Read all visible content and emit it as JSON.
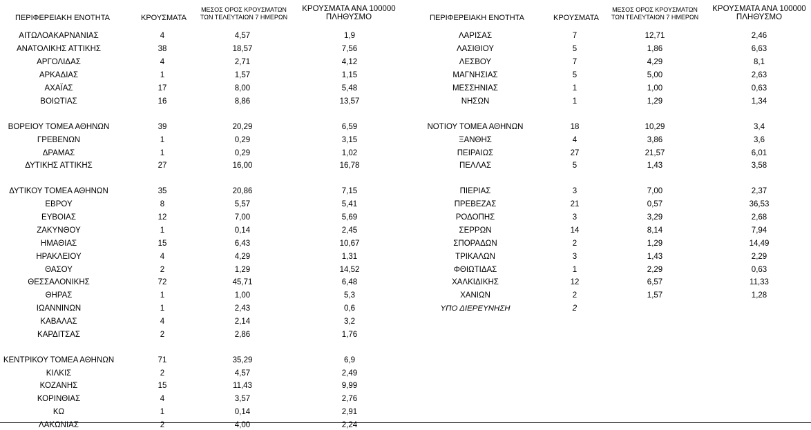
{
  "headers": {
    "region": "ΠΕΡΙΦΕΡΕΙΑΚΗ ΕΝΟΤΗΤΑ",
    "cases": "ΚΡΟΥΣΜΑΤΑ",
    "avg_line1": "ΜΕΣΟΣ ΟΡΟΣ ΚΡΟΥΣΜΑΤΩΝ",
    "avg_line2": "ΤΩΝ ΤΕΛΕΥΤΑΙΩΝ 7 ΗΜΕΡΩΝ",
    "per100k_line1": "ΚΡΟΥΣΜΑΤΑ ΑΝΑ 100000",
    "per100k_line2": "ΠΛΗΘΥΣΜΟ"
  },
  "left_rows": [
    {
      "name": "ΑΙΤΩΛΟΑΚΑΡΝΑΝΙΑΣ",
      "cases": "4",
      "avg": "4,57",
      "per100k": "1,9"
    },
    {
      "name": "ΑΝΑΤΟΛΙΚΗΣ ΑΤΤΙΚΗΣ",
      "cases": "38",
      "avg": "18,57",
      "per100k": "7,56"
    },
    {
      "name": "ΑΡΓΟΛΙΔΑΣ",
      "cases": "4",
      "avg": "2,71",
      "per100k": "4,12"
    },
    {
      "name": "ΑΡΚΑΔΙΑΣ",
      "cases": "1",
      "avg": "1,57",
      "per100k": "1,15"
    },
    {
      "name": "ΑΧΑΪΑΣ",
      "cases": "17",
      "avg": "8,00",
      "per100k": "5,48"
    },
    {
      "name": "ΒΟΙΩΤΙΑΣ",
      "cases": "16",
      "avg": "8,86",
      "per100k": "13,57"
    },
    {
      "name": "ΒΟΡΕΙΟΥ ΤΟΜΕΑ ΑΘΗΝΩΝ",
      "cases": "39",
      "avg": "20,29",
      "per100k": "6,59"
    },
    {
      "name": "ΓΡΕΒΕΝΩΝ",
      "cases": "1",
      "avg": "0,29",
      "per100k": "3,15"
    },
    {
      "name": "ΔΡΑΜΑΣ",
      "cases": "1",
      "avg": "0,29",
      "per100k": "1,02"
    },
    {
      "name": "ΔΥΤΙΚΗΣ ΑΤΤΙΚΗΣ",
      "cases": "27",
      "avg": "16,00",
      "per100k": "16,78"
    },
    {
      "name": "ΔΥΤΙΚΟΥ ΤΟΜΕΑ ΑΘΗΝΩΝ",
      "cases": "35",
      "avg": "20,86",
      "per100k": "7,15"
    },
    {
      "name": "ΕΒΡΟΥ",
      "cases": "8",
      "avg": "5,57",
      "per100k": "5,41"
    },
    {
      "name": "ΕΥΒΟΙΑΣ",
      "cases": "12",
      "avg": "7,00",
      "per100k": "5,69"
    },
    {
      "name": "ΖΑΚΥΝΘΟΥ",
      "cases": "1",
      "avg": "0,14",
      "per100k": "2,45"
    },
    {
      "name": "ΗΜΑΘΙΑΣ",
      "cases": "15",
      "avg": "6,43",
      "per100k": "10,67"
    },
    {
      "name": "ΗΡΑΚΛΕΙΟΥ",
      "cases": "4",
      "avg": "4,29",
      "per100k": "1,31"
    },
    {
      "name": "ΘΑΣΟΥ",
      "cases": "2",
      "avg": "1,29",
      "per100k": "14,52"
    },
    {
      "name": "ΘΕΣΣΑΛΟΝΙΚΗΣ",
      "cases": "72",
      "avg": "45,71",
      "per100k": "6,48"
    },
    {
      "name": "ΘΗΡΑΣ",
      "cases": "1",
      "avg": "1,00",
      "per100k": "5,3"
    },
    {
      "name": "ΙΩΑΝΝΙΝΩΝ",
      "cases": "1",
      "avg": "2,43",
      "per100k": "0,6"
    },
    {
      "name": "ΚΑΒΑΛΑΣ",
      "cases": "4",
      "avg": "2,14",
      "per100k": "3,2"
    },
    {
      "name": "ΚΑΡΔΙΤΣΑΣ",
      "cases": "2",
      "avg": "2,86",
      "per100k": "1,76"
    },
    {
      "name": "ΚΕΝΤΡΙΚΟΥ ΤΟΜΕΑ ΑΘΗΝΩΝ",
      "cases": "71",
      "avg": "35,29",
      "per100k": "6,9"
    },
    {
      "name": "ΚΙΛΚΙΣ",
      "cases": "2",
      "avg": "4,57",
      "per100k": "2,49"
    },
    {
      "name": "ΚΟΖΑΝΗΣ",
      "cases": "15",
      "avg": "11,43",
      "per100k": "9,99"
    },
    {
      "name": "ΚΟΡΙΝΘΙΑΣ",
      "cases": "4",
      "avg": "3,57",
      "per100k": "2,76"
    },
    {
      "name": "ΚΩ",
      "cases": "1",
      "avg": "0,14",
      "per100k": "2,91"
    },
    {
      "name": "ΛΑΚΩΝΙΑΣ",
      "cases": "2",
      "avg": "4,00",
      "per100k": "2,24"
    }
  ],
  "right_rows": [
    {
      "name": "ΛΑΡΙΣΑΣ",
      "cases": "7",
      "avg": "12,71",
      "per100k": "2,46"
    },
    {
      "name": "ΛΑΣΙΘΙΟΥ",
      "cases": "5",
      "avg": "1,86",
      "per100k": "6,63"
    },
    {
      "name": "ΛΕΣΒΟΥ",
      "cases": "7",
      "avg": "4,29",
      "per100k": "8,1"
    },
    {
      "name": "ΜΑΓΝΗΣΙΑΣ",
      "cases": "5",
      "avg": "5,00",
      "per100k": "2,63"
    },
    {
      "name": "ΜΕΣΣΗΝΙΑΣ",
      "cases": "1",
      "avg": "1,00",
      "per100k": "0,63"
    },
    {
      "name": "ΝΗΣΩΝ",
      "cases": "1",
      "avg": "1,29",
      "per100k": "1,34"
    },
    {
      "name": "ΝΟΤΙΟΥ ΤΟΜΕΑ ΑΘΗΝΩΝ",
      "cases": "18",
      "avg": "10,29",
      "per100k": "3,4"
    },
    {
      "name": "ΞΑΝΘΗΣ",
      "cases": "4",
      "avg": "3,86",
      "per100k": "3,6"
    },
    {
      "name": "ΠΕΙΡΑΙΩΣ",
      "cases": "27",
      "avg": "21,57",
      "per100k": "6,01"
    },
    {
      "name": "ΠΕΛΛΑΣ",
      "cases": "5",
      "avg": "1,43",
      "per100k": "3,58"
    },
    {
      "name": "ΠΙΕΡΙΑΣ",
      "cases": "3",
      "avg": "7,00",
      "per100k": "2,37"
    },
    {
      "name": "ΠΡΕΒΕΖΑΣ",
      "cases": "21",
      "avg": "0,57",
      "per100k": "36,53"
    },
    {
      "name": "ΡΟΔΟΠΗΣ",
      "cases": "3",
      "avg": "3,29",
      "per100k": "2,68"
    },
    {
      "name": "ΣΕΡΡΩΝ",
      "cases": "14",
      "avg": "8,14",
      "per100k": "7,94"
    },
    {
      "name": "ΣΠΟΡΑΔΩΝ",
      "cases": "2",
      "avg": "1,29",
      "per100k": "14,49"
    },
    {
      "name": "ΤΡΙΚΑΛΩΝ",
      "cases": "3",
      "avg": "1,43",
      "per100k": "2,29"
    },
    {
      "name": "ΦΘΙΩΤΙΔΑΣ",
      "cases": "1",
      "avg": "2,29",
      "per100k": "0,63"
    },
    {
      "name": "ΧΑΛΚΙΔΙΚΗΣ",
      "cases": "12",
      "avg": "6,57",
      "per100k": "11,33"
    },
    {
      "name": "ΧΑΝΙΩΝ",
      "cases": "2",
      "avg": "1,57",
      "per100k": "1,28"
    },
    {
      "name": "ΥΠΟ ΔΙΕΡΕΥΝΗΣΗ",
      "cases": "2",
      "avg": "",
      "per100k": ""
    }
  ]
}
